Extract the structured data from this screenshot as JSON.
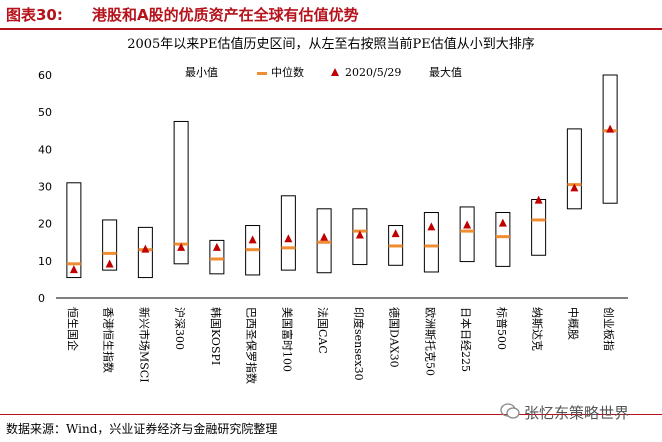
{
  "figure": {
    "label": "图表30:",
    "title": "港股和A股的优质资产在全球有估值优势",
    "subtitle": "2005年以来PE估值历史区间，从左至右按照当前PE估值从小到大排序"
  },
  "legend": {
    "min": "最小值",
    "median": "中位数",
    "current": "2020/5/29",
    "max": "最大值"
  },
  "source": "数据来源：Wind，兴业证券经济与金融研究院整理",
  "watermark": "张忆东策略世界",
  "colors": {
    "title": "#b5121b",
    "median": "#f08c32",
    "current": "#c00000",
    "box": "#000000"
  },
  "chart_data": {
    "type": "range",
    "title": "2005年以来PE估值历史区间，从左至右按照当前PE估值从小到大排序",
    "ylim": [
      0,
      60
    ],
    "yticks": [
      0,
      10,
      20,
      30,
      40,
      50,
      60
    ],
    "categories": [
      "恒生国企",
      "香港恒生指数",
      "新兴市场MSCI",
      "沪深300",
      "韩国KOSPI",
      "巴西圣保罗指数",
      "美国富时100",
      "法国CAC",
      "印度sensex30",
      "德国DAX30",
      "欧洲斯托克50",
      "日本日经225",
      "标普500",
      "纳斯达克",
      "中概股",
      "创业板指"
    ],
    "series": [
      {
        "name": "最小值",
        "values": [
          5.5,
          7.5,
          5.5,
          9.2,
          6.5,
          6.2,
          7.5,
          6.8,
          9.0,
          8.8,
          7.0,
          9.8,
          8.5,
          11.5,
          24.0,
          25.5
        ]
      },
      {
        "name": "中位数",
        "values": [
          9.2,
          12.0,
          13.0,
          14.5,
          10.5,
          13.0,
          13.5,
          15.0,
          18.0,
          14.0,
          14.0,
          18.0,
          16.5,
          21.0,
          30.5,
          45.0
        ]
      },
      {
        "name": "2020/5/29",
        "values": [
          7.5,
          9.0,
          13.0,
          13.5,
          13.5,
          15.5,
          15.8,
          16.2,
          16.8,
          17.2,
          19.0,
          19.5,
          20.0,
          26.2,
          29.5,
          45.3
        ]
      },
      {
        "name": "最大值",
        "values": [
          31.0,
          21.0,
          19.0,
          47.5,
          15.5,
          19.5,
          27.5,
          24.0,
          24.0,
          19.5,
          23.0,
          24.5,
          23.0,
          26.5,
          45.5,
          60.0
        ]
      }
    ]
  }
}
